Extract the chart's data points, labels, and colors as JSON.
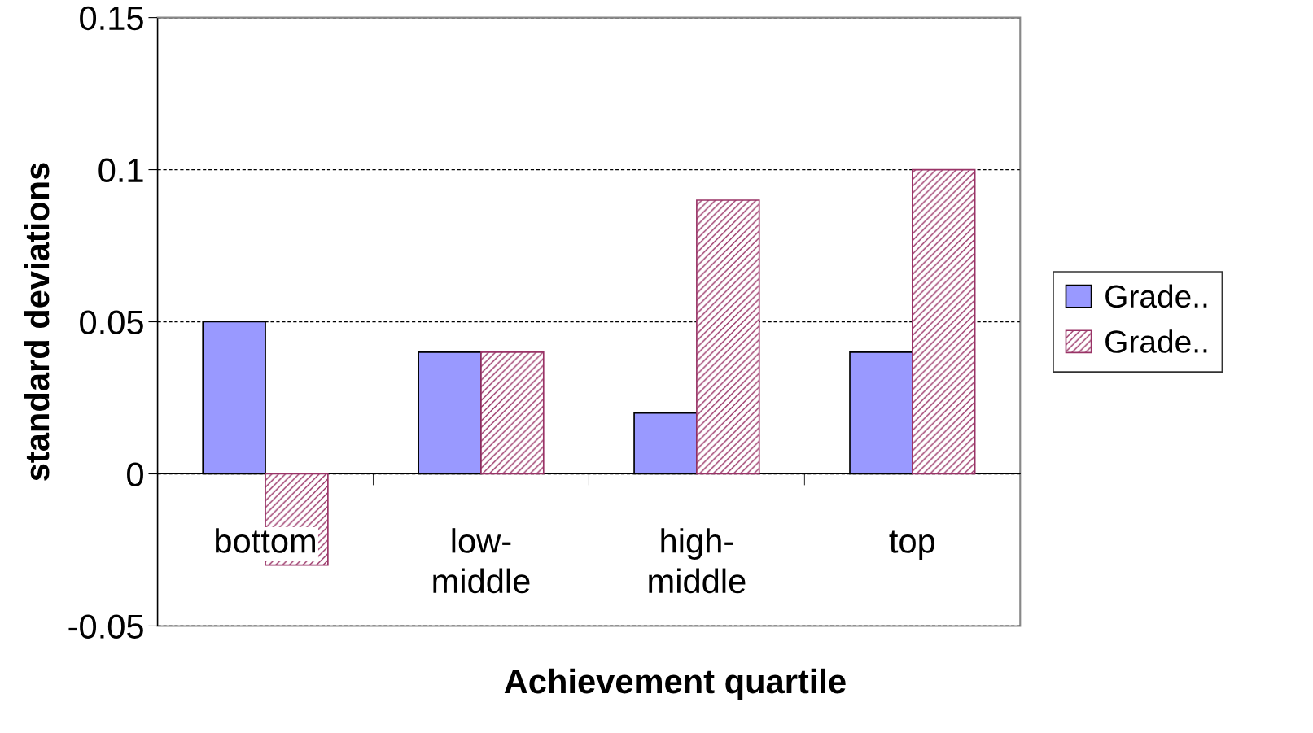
{
  "chart_data": {
    "type": "bar",
    "xlabel": "Achievement quartile",
    "ylabel": "standard deviations",
    "categories": [
      "bottom",
      "low-\nmiddle",
      "high-\nmiddle",
      "top"
    ],
    "series": [
      {
        "name": "Grade..",
        "color": "#9999ff",
        "values": [
          0.05,
          0.04,
          0.02,
          0.04
        ]
      },
      {
        "name": "Grade..",
        "color": "#993366",
        "values": [
          -0.03,
          0.04,
          0.09,
          0.1
        ]
      }
    ],
    "ylim": [
      -0.05,
      0.15
    ],
    "yticks": [
      -0.05,
      0,
      0.05,
      0.1,
      0.15
    ],
    "grid": "y",
    "legend": "right"
  }
}
